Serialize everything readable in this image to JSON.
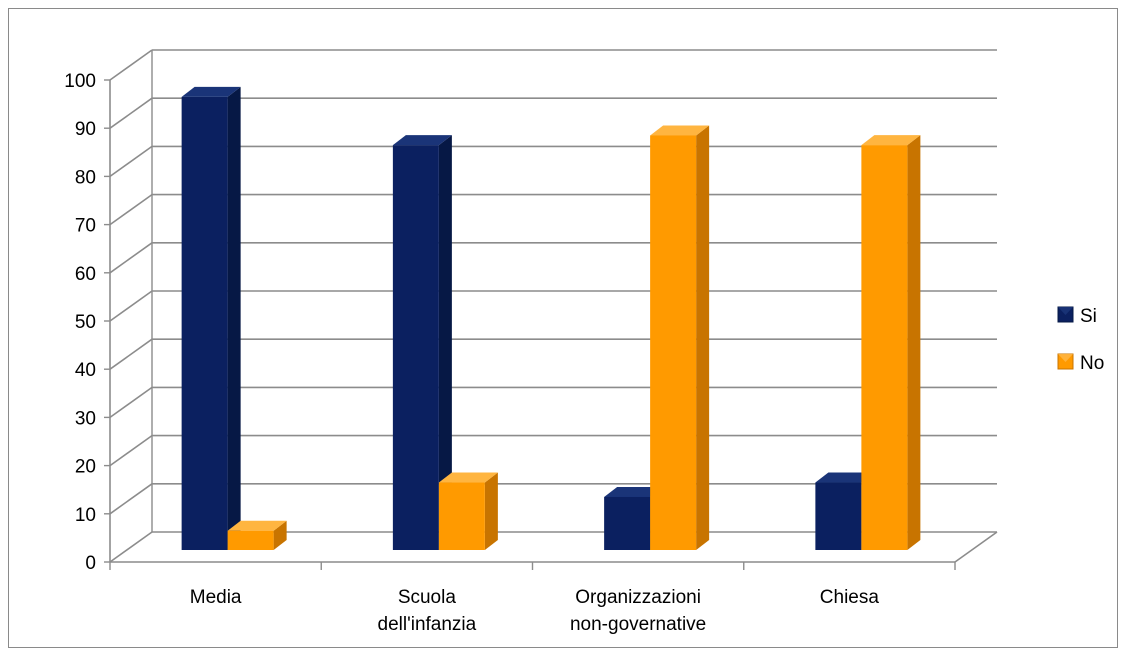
{
  "chart_data": {
    "type": "bar",
    "style": "3d-clustered-column",
    "categories": [
      [
        "Media"
      ],
      [
        "Scuola",
        "dell'infanzia"
      ],
      [
        "Organizzazioni",
        "non-governative"
      ],
      [
        "Chiesa"
      ]
    ],
    "series": [
      {
        "name": "Si",
        "values": [
          94,
          84,
          11,
          14
        ],
        "color": "#0b2060",
        "side": "#061845",
        "top": "#1a3478"
      },
      {
        "name": "No",
        "values": [
          4,
          14,
          86,
          84
        ],
        "color": "#ff9a00",
        "side": "#c87400",
        "top": "#ffb540"
      }
    ],
    "ylim": [
      0,
      100
    ],
    "yticks": [
      0,
      10,
      20,
      30,
      40,
      50,
      60,
      70,
      80,
      90,
      100
    ],
    "title": "",
    "xlabel": "",
    "ylabel": "",
    "grid": true,
    "legend_position": "right"
  }
}
